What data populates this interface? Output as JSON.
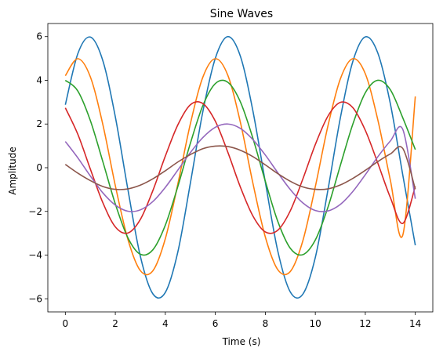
{
  "chart_data": {
    "type": "line",
    "title": "Sine Waves",
    "xlabel": "Time (s)",
    "ylabel": "Amplitude",
    "xlim": [
      -0.7,
      14.7
    ],
    "ylim": [
      -6.6,
      6.6
    ],
    "xticks": [
      0,
      2,
      4,
      6,
      8,
      10,
      12,
      14
    ],
    "yticks": [
      -6,
      -4,
      -2,
      0,
      2,
      4,
      6
    ],
    "ytick_labels": [
      "−6",
      "−4",
      "−2",
      "0",
      "2",
      "4",
      "6"
    ],
    "grid": false,
    "legend": "none",
    "x": [
      0,
      0.5,
      1,
      1.5,
      2,
      2.5,
      3,
      3.5,
      4,
      4.5,
      5,
      5.5,
      6,
      6.5,
      7,
      7.5,
      8,
      8.5,
      9,
      9.5,
      10,
      10.5,
      11,
      11.5,
      12,
      12.5,
      13,
      13.5,
      14
    ],
    "series": [
      {
        "color": "#1f77b4",
        "values": [
          2.88,
          5.22,
          5.98,
          4.9,
          2.33,
          -0.98,
          -4.05,
          -5.77,
          -5.71,
          -3.86,
          -0.72,
          2.56,
          5.01,
          6.0,
          5.11,
          2.62,
          -0.66,
          -3.82,
          -5.69,
          -5.79,
          -4.11,
          -1.05,
          2.27,
          4.86,
          5.99,
          5.25,
          2.94,
          -0.34,
          -3.55
        ]
      },
      {
        "color": "#ff7f0e",
        "values": [
          4.21,
          4.99,
          4.16,
          1.98,
          -0.82,
          -3.27,
          -4.71,
          -4.72,
          -3.25,
          -0.75,
          2.0,
          4.14,
          4.99,
          4.23,
          2.09,
          -0.69,
          -3.17,
          -4.67,
          -4.75,
          -3.35,
          -0.87,
          1.89,
          4.06,
          4.99,
          4.3,
          2.19,
          -0.56,
          -3.08,
          3.26
        ]
      },
      {
        "color": "#2ca02c",
        "values": [
          4.0,
          3.51,
          2.16,
          0.28,
          -1.66,
          -3.2,
          -3.96,
          -3.76,
          -2.63,
          -0.86,
          1.11,
          2.84,
          3.85,
          3.91,
          3.02,
          1.36,
          -0.62,
          -2.46,
          -3.69,
          -3.98,
          -3.31,
          -1.83,
          0.1,
          1.99,
          3.43,
          4.0,
          3.57,
          2.28,
          0.83
        ]
      },
      {
        "color": "#d62728",
        "values": [
          2.74,
          1.53,
          -0.06,
          -1.6,
          -2.71,
          -2.99,
          -2.37,
          -1.05,
          0.53,
          1.96,
          2.88,
          2.94,
          2.13,
          0.71,
          -0.88,
          -2.2,
          -2.94,
          -2.86,
          -1.97,
          -0.52,
          1.06,
          2.35,
          2.99,
          2.75,
          1.71,
          0.21,
          -1.36,
          -2.55,
          -0.85
        ]
      },
      {
        "color": "#9467bd",
        "values": [
          1.2,
          0.45,
          -0.38,
          -1.15,
          -1.71,
          -1.99,
          -1.93,
          -1.55,
          -0.9,
          -0.11,
          0.69,
          1.38,
          1.85,
          2.0,
          1.8,
          1.29,
          0.58,
          -0.23,
          -1.0,
          -1.61,
          -1.96,
          -1.98,
          -1.68,
          -1.09,
          -0.32,
          0.5,
          1.22,
          1.75,
          -1.42
        ]
      },
      {
        "color": "#8c564b",
        "values": [
          0.15,
          -0.25,
          -0.59,
          -0.86,
          -0.99,
          -0.97,
          -0.8,
          -0.51,
          -0.14,
          0.26,
          0.6,
          0.87,
          0.99,
          0.97,
          0.8,
          0.51,
          0.13,
          -0.27,
          -0.62,
          -0.88,
          -0.99,
          -0.97,
          -0.79,
          -0.49,
          -0.12,
          0.28,
          0.63,
          0.88,
          -0.98
        ]
      }
    ]
  }
}
